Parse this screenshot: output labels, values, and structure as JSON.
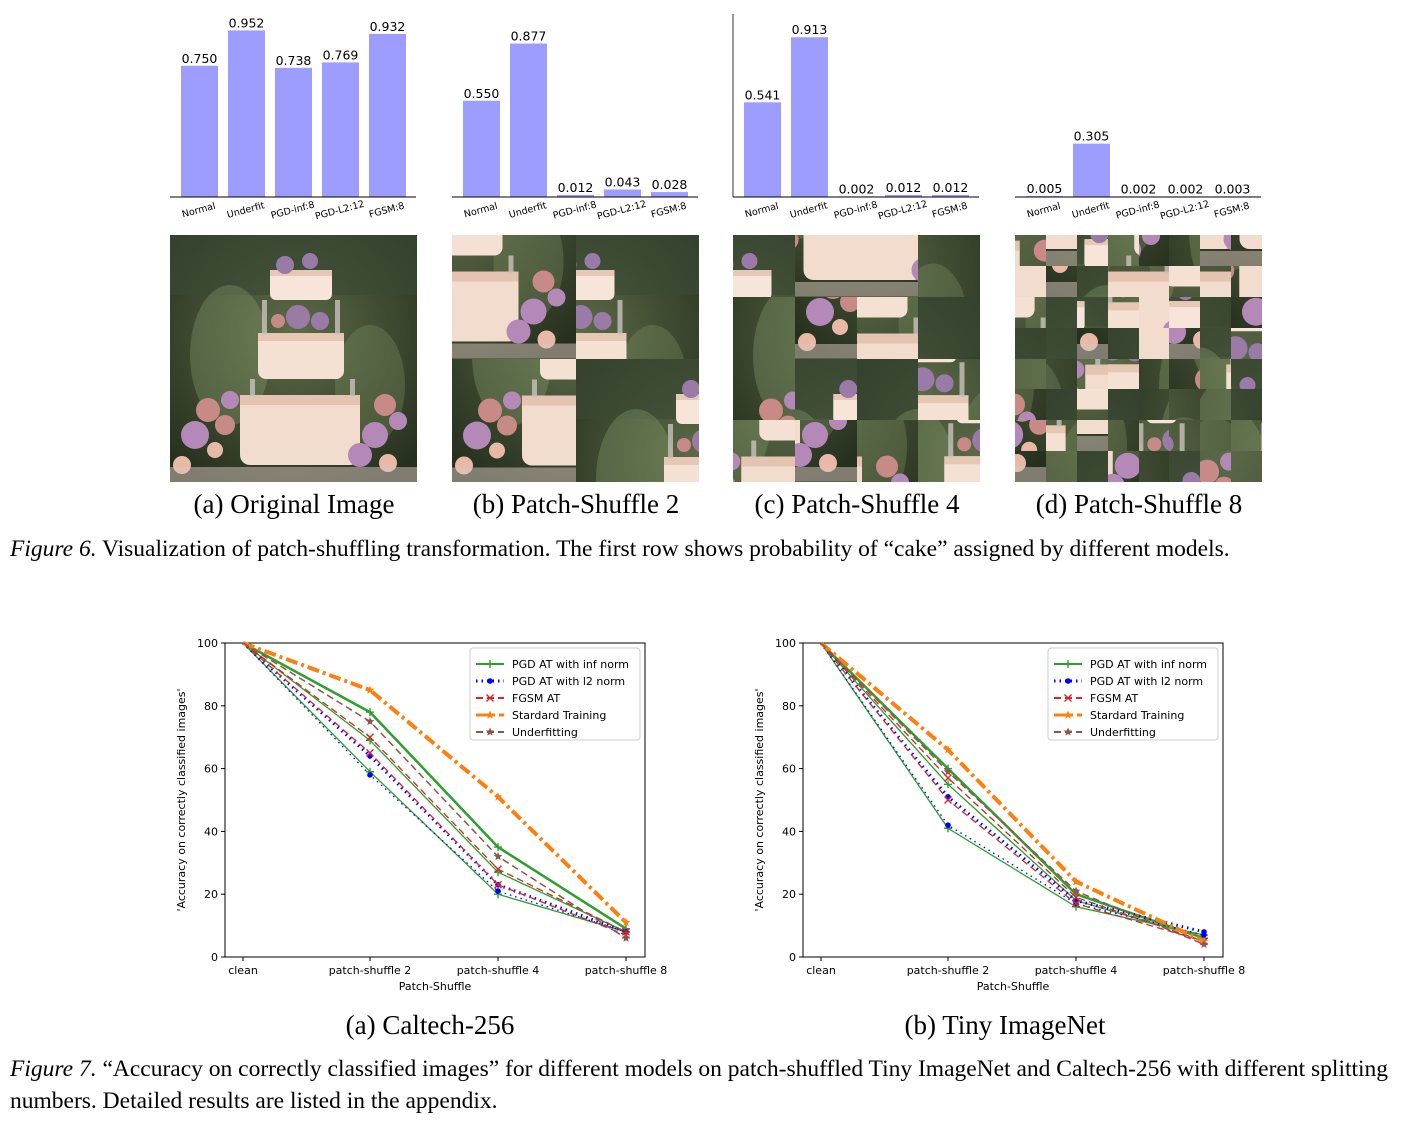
{
  "figure6": {
    "bar_color": "#9d9dff",
    "panels": [
      {
        "caption": "(a) Original Image",
        "grid": 1
      },
      {
        "caption": "(b) Patch-Shuffle 2",
        "grid": 2
      },
      {
        "caption": "(c) Patch-Shuffle 4",
        "grid": 4
      },
      {
        "caption": "(d) Patch-Shuffle 8",
        "grid": 8
      }
    ],
    "caption_label": "Figure 6.",
    "caption_text": " Visualization of patch-shuffling transformation. The first row shows probability of “cake” assigned by different models."
  },
  "figure7": {
    "panels": [
      {
        "caption": "(a) Caltech-256"
      },
      {
        "caption": "(b) Tiny ImageNet"
      }
    ],
    "caption_label": "Figure 7.",
    "caption_text": " “Accuracy on correctly classified images” for different models on patch-shuffled Tiny ImageNet and Caltech-256 with different splitting numbers. Detailed results are listed in the appendix."
  },
  "chart_data": [
    {
      "type": "bar",
      "categories": [
        "Normal",
        "Underfit",
        "PGD-inf:8",
        "PGD-L2:12",
        "FGSM:8"
      ],
      "values": [
        0.75,
        0.952,
        0.738,
        0.769,
        0.932
      ],
      "labels": [
        "0.750",
        "0.952",
        "0.738",
        "0.769",
        "0.932"
      ],
      "ylim": [
        0,
        1
      ]
    },
    {
      "type": "bar",
      "categories": [
        "Normal",
        "Underfit",
        "PGD-inf:8",
        "PGD-L2:12",
        "FGSM:8"
      ],
      "values": [
        0.55,
        0.877,
        0.012,
        0.043,
        0.028
      ],
      "labels": [
        "0.550",
        "0.877",
        "0.012",
        "0.043",
        "0.028"
      ],
      "ylim": [
        0,
        1
      ]
    },
    {
      "type": "bar",
      "categories": [
        "Normal",
        "Underfit",
        "PGD-inf:8",
        "PGD-L2:12",
        "FGSM:8"
      ],
      "values": [
        0.541,
        0.913,
        0.002,
        0.012,
        0.012
      ],
      "labels": [
        "0.541",
        "0.913",
        "0.002",
        "0.012",
        "0.012"
      ],
      "ylim": [
        0,
        1
      ]
    },
    {
      "type": "bar",
      "categories": [
        "Normal",
        "Underfit",
        "PGD-inf:8",
        "PGD-L2:12",
        "FGSM:8"
      ],
      "values": [
        0.005,
        0.305,
        0.002,
        0.002,
        0.003
      ],
      "labels": [
        "0.005",
        "0.305",
        "0.002",
        "0.002",
        "0.003"
      ],
      "ylim": [
        0,
        1
      ]
    },
    {
      "type": "line",
      "categories": [
        "clean",
        "patch-shuffle 2",
        "patch-shuffle 4",
        "patch-shuffle 8"
      ],
      "xlabel": "Patch-Shuffle",
      "ylabel": "'Accuracy on correctly classified images'",
      "ylim": [
        0,
        100
      ],
      "yticks": [
        0,
        20,
        40,
        60,
        80,
        100
      ],
      "legend": "top-right",
      "series": [
        {
          "name": "PGD AT with inf norm",
          "color": "#2ca02c",
          "lines": [
            [
              100,
              78,
              35,
              9
            ],
            [
              100,
              69,
              27,
              8
            ],
            [
              100,
              59,
              20,
              8
            ]
          ]
        },
        {
          "name": "PGD AT with l2 norm",
          "color": "#0000ff",
          "lines": [
            [
              100,
              64,
              23,
              8
            ],
            [
              100,
              58,
              21,
              8
            ]
          ]
        },
        {
          "name": "FGSM AT",
          "color": "#d62728",
          "lines": [
            [
              100,
              70,
              28,
              8
            ],
            [
              100,
              65,
              23,
              7
            ]
          ]
        },
        {
          "name": "Stardard Training",
          "color": "#ff7f0e",
          "lines": [
            [
              100,
              85,
              51,
              11
            ]
          ]
        },
        {
          "name": "Underfitting",
          "color": "#8c564b",
          "lines": [
            [
              100,
              75,
              32,
              6
            ]
          ]
        }
      ]
    },
    {
      "type": "line",
      "categories": [
        "clean",
        "patch-shuffle 2",
        "patch-shuffle 4",
        "patch-shuffle 8"
      ],
      "xlabel": "Patch-Shuffle",
      "ylabel": "'Accuracy on correctly classified images'",
      "ylim": [
        0,
        100
      ],
      "yticks": [
        0,
        20,
        40,
        60,
        80,
        100
      ],
      "legend": "top-right",
      "series": [
        {
          "name": "PGD AT with inf norm",
          "color": "#2ca02c",
          "lines": [
            [
              100,
              60,
              20,
              6
            ],
            [
              100,
              55,
              18,
              6
            ],
            [
              100,
              41,
              16,
              7
            ]
          ]
        },
        {
          "name": "PGD AT with l2 norm",
          "color": "#0000ff",
          "lines": [
            [
              100,
              51,
              18,
              8
            ],
            [
              100,
              42,
              17,
              7
            ]
          ]
        },
        {
          "name": "FGSM AT",
          "color": "#d62728",
          "lines": [
            [
              100,
              57,
              19,
              5
            ],
            [
              100,
              50,
              17,
              5
            ]
          ]
        },
        {
          "name": "Stardard Training",
          "color": "#ff7f0e",
          "lines": [
            [
              100,
              66,
              24,
              5
            ]
          ]
        },
        {
          "name": "Underfitting",
          "color": "#8c564b",
          "lines": [
            [
              100,
              59,
              21,
              4
            ]
          ]
        }
      ]
    }
  ]
}
